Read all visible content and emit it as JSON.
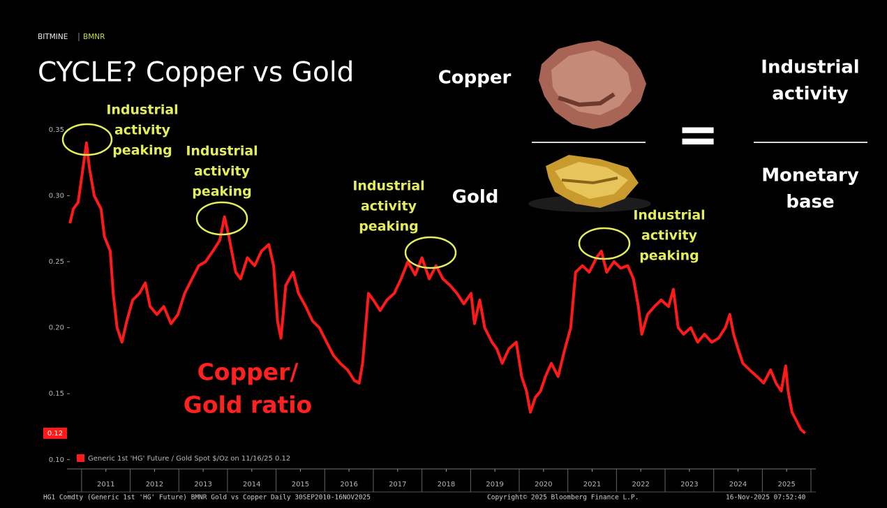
{
  "header": {
    "brand": "BITMINE",
    "ticker": "BMNR",
    "title": "CYCLE? Copper vs Gold"
  },
  "chart_data": {
    "type": "line",
    "xlim": [
      2010.7,
      2026.1
    ],
    "ylim": [
      0.093,
      0.361
    ],
    "xticks": [
      {
        "value": 2011.5,
        "label": "2011"
      },
      {
        "value": 2012.5,
        "label": "2012"
      },
      {
        "value": 2013.5,
        "label": "2013"
      },
      {
        "value": 2014.5,
        "label": "2014"
      },
      {
        "value": 2015.5,
        "label": "2015"
      },
      {
        "value": 2016.5,
        "label": "2016"
      },
      {
        "value": 2017.5,
        "label": "2017"
      },
      {
        "value": 2018.5,
        "label": "2018"
      },
      {
        "value": 2019.5,
        "label": "2019"
      },
      {
        "value": 2020.5,
        "label": "2020"
      },
      {
        "value": 2021.5,
        "label": "2021"
      },
      {
        "value": 2022.5,
        "label": "2022"
      },
      {
        "value": 2023.5,
        "label": "2023"
      },
      {
        "value": 2024.5,
        "label": "2024"
      },
      {
        "value": 2025.5,
        "label": "2025"
      }
    ],
    "yticks": [
      {
        "value": 0.1,
        "label": "0.10"
      },
      0.15,
      {
        "value": 0.2,
        "label": "0.20"
      },
      0.25,
      {
        "value": 0.3,
        "label": "0.30"
      },
      0.35
    ],
    "x": [
      2010.76,
      2010.83,
      2010.93,
      2011.01,
      2011.1,
      2011.16,
      2011.26,
      2011.4,
      2011.47,
      2011.59,
      2011.65,
      2011.73,
      2011.83,
      2011.93,
      2012.05,
      2012.19,
      2012.31,
      2012.41,
      2012.55,
      2012.69,
      2012.84,
      2012.98,
      2013.12,
      2013.27,
      2013.41,
      2013.55,
      2013.7,
      2013.84,
      2013.94,
      2014.03,
      2014.17,
      2014.27,
      2014.41,
      2014.56,
      2014.7,
      2014.85,
      2014.95,
      2015.03,
      2015.1,
      2015.2,
      2015.35,
      2015.46,
      2015.61,
      2015.75,
      2015.89,
      2016.04,
      2016.18,
      2016.32,
      2016.47,
      2016.61,
      2016.71,
      2016.78,
      2016.9,
      2017.0,
      2017.14,
      2017.28,
      2017.43,
      2017.57,
      2017.71,
      2017.86,
      2018.0,
      2018.15,
      2018.29,
      2018.43,
      2018.58,
      2018.72,
      2018.86,
      2019.01,
      2019.08,
      2019.19,
      2019.29,
      2019.44,
      2019.54,
      2019.65,
      2019.79,
      2019.94,
      2020.05,
      2020.15,
      2020.23,
      2020.33,
      2020.44,
      2020.54,
      2020.66,
      2020.8,
      2020.94,
      2021.06,
      2021.16,
      2021.3,
      2021.44,
      2021.59,
      2021.69,
      2021.8,
      2021.95,
      2022.09,
      2022.23,
      2022.35,
      2022.45,
      2022.52,
      2022.64,
      2022.78,
      2022.92,
      2023.07,
      2023.17,
      2023.27,
      2023.38,
      2023.53,
      2023.67,
      2023.81,
      2023.96,
      2024.1,
      2024.24,
      2024.33,
      2024.41,
      2024.5,
      2024.6,
      2024.74,
      2024.89,
      2025.03,
      2025.17,
      2025.28,
      2025.39,
      2025.48,
      2025.53,
      2025.61,
      2025.71,
      2025.79,
      2025.88
    ],
    "series": [
      {
        "name": "Generic 1st 'HG' Future / Gold Spot $/Oz on 11/16/25 0.12",
        "color": "#ff1a1a",
        "values": [
          0.279,
          0.29,
          0.295,
          0.316,
          0.34,
          0.321,
          0.3,
          0.29,
          0.269,
          0.258,
          0.226,
          0.2,
          0.189,
          0.205,
          0.221,
          0.226,
          0.234,
          0.216,
          0.21,
          0.216,
          0.203,
          0.21,
          0.226,
          0.237,
          0.247,
          0.25,
          0.258,
          0.266,
          0.284,
          0.269,
          0.242,
          0.237,
          0.253,
          0.247,
          0.258,
          0.263,
          0.247,
          0.205,
          0.192,
          0.232,
          0.242,
          0.226,
          0.216,
          0.205,
          0.2,
          0.189,
          0.179,
          0.173,
          0.168,
          0.16,
          0.158,
          0.173,
          0.226,
          0.221,
          0.213,
          0.221,
          0.226,
          0.237,
          0.25,
          0.24,
          0.253,
          0.237,
          0.247,
          0.237,
          0.232,
          0.226,
          0.218,
          0.226,
          0.203,
          0.221,
          0.2,
          0.189,
          0.184,
          0.173,
          0.184,
          0.189,
          0.163,
          0.152,
          0.136,
          0.147,
          0.152,
          0.163,
          0.173,
          0.163,
          0.184,
          0.2,
          0.242,
          0.247,
          0.242,
          0.253,
          0.258,
          0.242,
          0.25,
          0.245,
          0.247,
          0.237,
          0.216,
          0.195,
          0.21,
          0.216,
          0.221,
          0.216,
          0.229,
          0.2,
          0.195,
          0.2,
          0.189,
          0.195,
          0.189,
          0.192,
          0.2,
          0.21,
          0.195,
          0.184,
          0.173,
          0.168,
          0.163,
          0.158,
          0.168,
          0.158,
          0.152,
          0.171,
          0.152,
          0.136,
          0.129,
          0.123,
          0.12
        ]
      }
    ],
    "annotations": [
      {
        "lines": [
          "Industrial",
          "activity",
          "peaking"
        ]
      },
      {
        "lines": [
          "Industrial",
          "activity",
          "peaking"
        ]
      },
      {
        "lines": [
          "Industrial",
          "activity",
          "peaking"
        ]
      },
      {
        "lines": [
          "Industrial",
          "activity",
          "peaking"
        ]
      }
    ],
    "ratio_label": [
      "Copper/",
      "Gold ratio"
    ]
  },
  "panel": {
    "copper": "Copper",
    "gold": "Gold",
    "equals": "=",
    "numerator": [
      "Industrial",
      "activity"
    ],
    "denominator": [
      "Monetary",
      "base"
    ]
  },
  "footer": {
    "source": "HG1 Comdty (Generic 1st 'HG' Future) BMNR Gold vs Copper Daily 30SEP2010-16NOV2025",
    "copyright": "Copyright© 2025 Bloomberg Finance L.P.",
    "timestamp": "16-Nov-2025 07:52:40"
  }
}
